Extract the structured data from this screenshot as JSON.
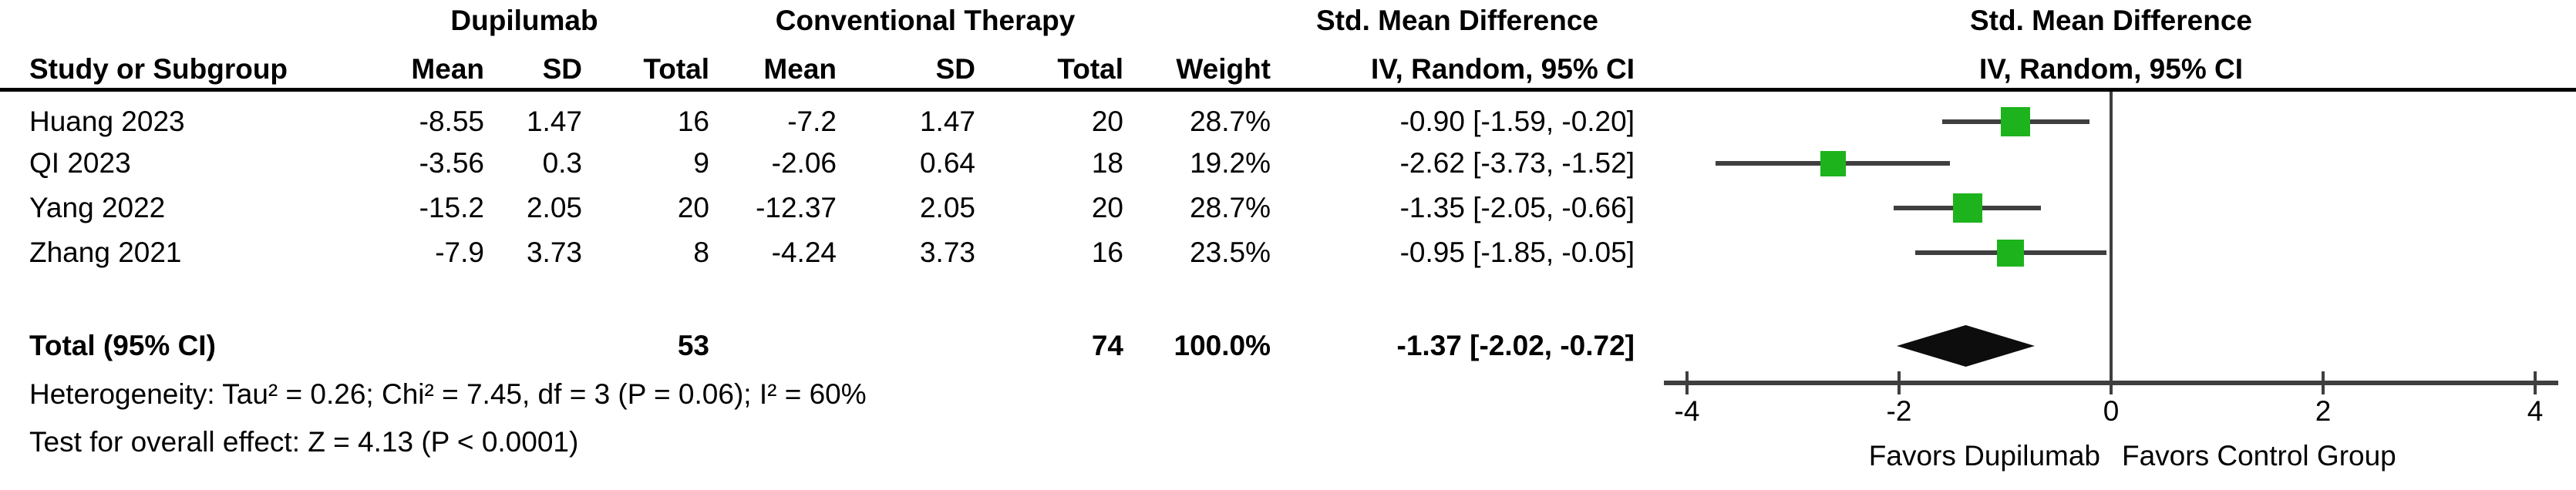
{
  "table": {
    "group1_header": "Dupilumab",
    "group2_header": "Conventional Therapy",
    "study_col_header": "Study or Subgroup",
    "mean_header": "Mean",
    "sd_header": "SD",
    "total_header": "Total",
    "mean2_header": "Mean",
    "sd2_header": "SD",
    "total2_header": "Total",
    "weight_header": "Weight",
    "effect_header_table": "Std. Mean Difference",
    "effect_subheader_table": "IV, Random, 95% CI",
    "effect_header_plot": "Std. Mean Difference",
    "effect_subheader_plot": "IV, Random, 95% CI"
  },
  "total_row": {
    "label": "Total (95% CI)",
    "treat_total": "53",
    "ctrl_total": "74",
    "weight": "100.0%",
    "ci_text": "-1.37 [-2.02, -0.72]"
  },
  "footnotes": {
    "heterogeneity": "Heterogeneity: Tau² = 0.26; Chi² = 7.45, df = 3 (P = 0.06); I² = 60%",
    "overall_effect": "Test for overall effect: Z = 4.13 (P < 0.0001)"
  },
  "colors": {
    "marker_green": "#1db31d",
    "line_gray": "#3f3f3f",
    "diamond_black": "#0d0d0d"
  },
  "chart_data": {
    "type": "scatter",
    "subtype": "forest-plot",
    "xlim": [
      -4,
      4
    ],
    "ticks": [
      "-4",
      "-2",
      "0",
      "2",
      "4"
    ],
    "tick_values": [
      -4,
      -2,
      0,
      2,
      4
    ],
    "zero_line": 0,
    "favors_left": "Favors Dupilumab",
    "favors_right": "Favors Control Group",
    "studies": [
      {
        "study": "Huang 2023",
        "treat_mean": "-8.55",
        "treat_sd": "1.47",
        "treat_total": "16",
        "ctrl_mean": "-7.2",
        "ctrl_sd": "1.47",
        "ctrl_total": "20",
        "weight": "28.7%",
        "smd": -0.9,
        "ci_low": -1.59,
        "ci_high": -0.2,
        "ci_text": "-0.90 [-1.59, -0.20]",
        "weight_value": 28.7
      },
      {
        "study": "QI 2023",
        "treat_mean": "-3.56",
        "treat_sd": "0.3",
        "treat_total": "9",
        "ctrl_mean": "-2.06",
        "ctrl_sd": "0.64",
        "ctrl_total": "18",
        "weight": "19.2%",
        "smd": -2.62,
        "ci_low": -3.73,
        "ci_high": -1.52,
        "ci_text": "-2.62 [-3.73, -1.52]",
        "weight_value": 19.2
      },
      {
        "study": "Yang 2022",
        "treat_mean": "-15.2",
        "treat_sd": "2.05",
        "treat_total": "20",
        "ctrl_mean": "-12.37",
        "ctrl_sd": "2.05",
        "ctrl_total": "20",
        "weight": "28.7%",
        "smd": -1.35,
        "ci_low": -2.05,
        "ci_high": -0.66,
        "ci_text": "-1.35 [-2.05, -0.66]",
        "weight_value": 28.7
      },
      {
        "study": "Zhang 2021",
        "treat_mean": "-7.9",
        "treat_sd": "3.73",
        "treat_total": "8",
        "ctrl_mean": "-4.24",
        "ctrl_sd": "3.73",
        "ctrl_total": "16",
        "weight": "23.5%",
        "smd": -0.95,
        "ci_low": -1.85,
        "ci_high": -0.05,
        "ci_text": "-0.95 [-1.85, -0.05]",
        "weight_value": 23.5
      }
    ],
    "pooled": {
      "smd": -1.37,
      "ci_low": -2.02,
      "ci_high": -0.72
    }
  }
}
